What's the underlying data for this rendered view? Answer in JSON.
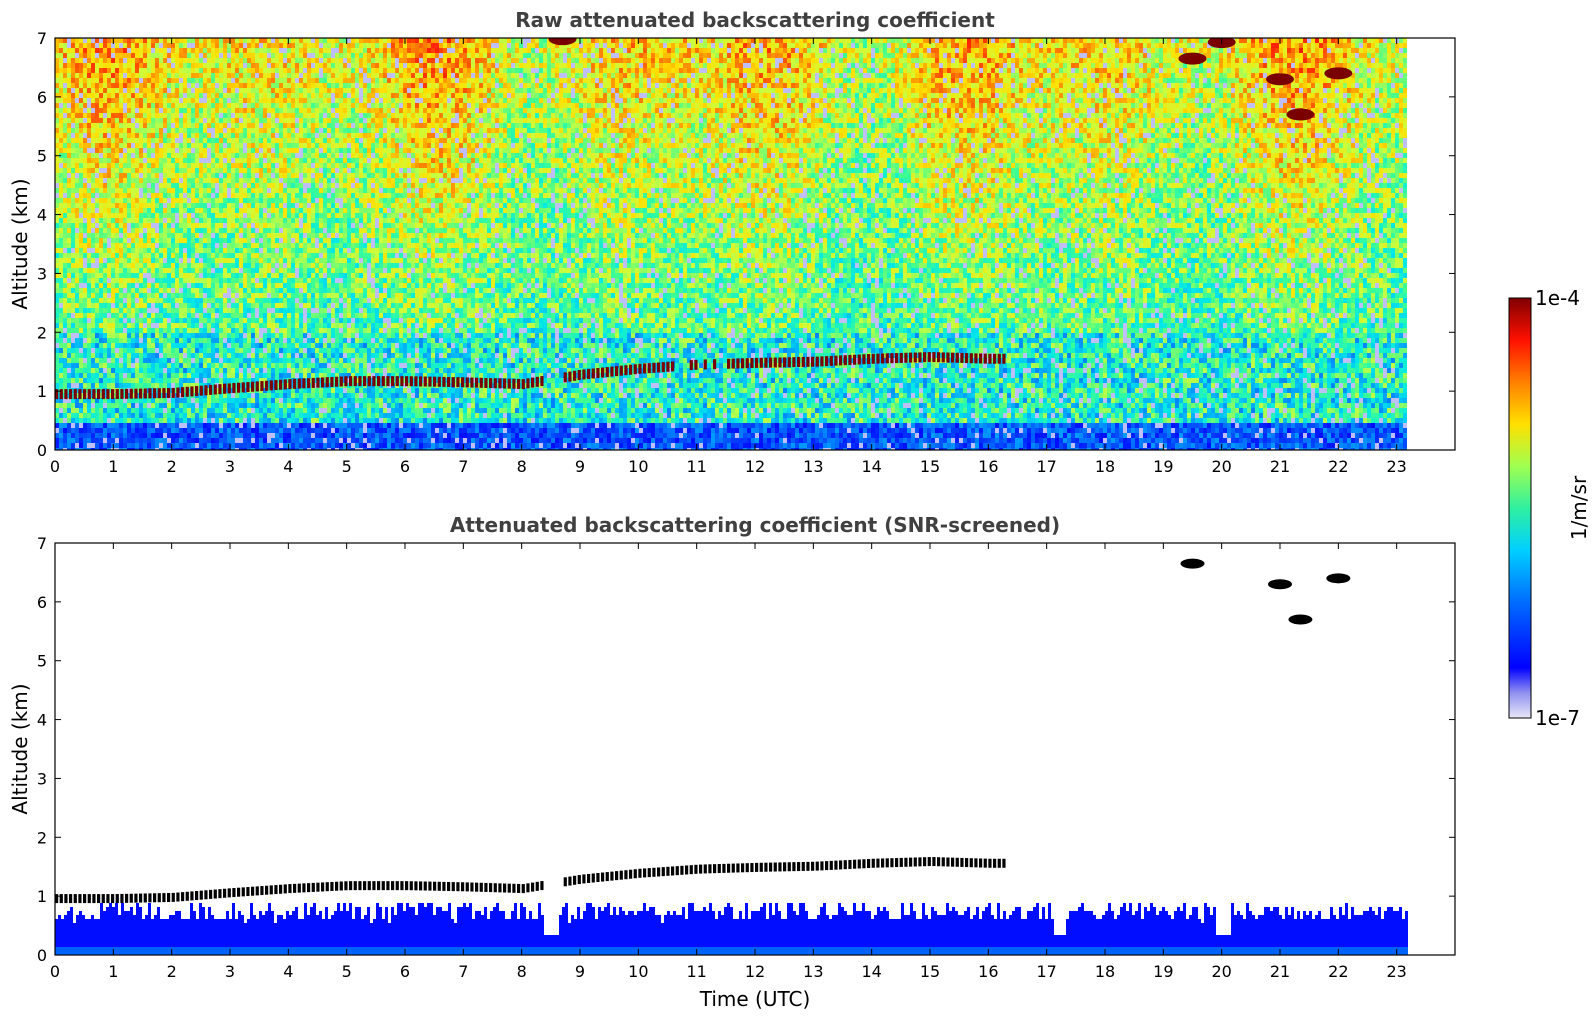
{
  "chart_data": [
    {
      "type": "heatmap",
      "title": "Raw attenuated backscattering coefficient",
      "xlabel": "",
      "ylabel": "Altitude (km)",
      "xlim": [
        0,
        24
      ],
      "ylim": [
        0,
        7
      ],
      "xticks": [
        "0",
        "1",
        "2",
        "3",
        "4",
        "5",
        "6",
        "7",
        "8",
        "9",
        "10",
        "11",
        "12",
        "13",
        "14",
        "15",
        "16",
        "17",
        "18",
        "19",
        "20",
        "21",
        "22",
        "23"
      ],
      "yticks": [
        "0",
        "1",
        "2",
        "3",
        "4",
        "5",
        "6",
        "7"
      ],
      "data_end_hour": 23.15,
      "boundary_layer_top_km": [
        {
          "x": 0,
          "y": 0.95
        },
        {
          "x": 1,
          "y": 0.95
        },
        {
          "x": 2,
          "y": 0.97
        },
        {
          "x": 3,
          "y": 1.05
        },
        {
          "x": 4,
          "y": 1.12
        },
        {
          "x": 5,
          "y": 1.17
        },
        {
          "x": 6,
          "y": 1.17
        },
        {
          "x": 7,
          "y": 1.15
        },
        {
          "x": 8,
          "y": 1.12
        },
        {
          "x": 9,
          "y": 1.28
        },
        {
          "x": 10,
          "y": 1.38
        },
        {
          "x": 11,
          "y": 1.45
        },
        {
          "x": 12,
          "y": 1.48
        },
        {
          "x": 13,
          "y": 1.5
        },
        {
          "x": 14,
          "y": 1.55
        },
        {
          "x": 15,
          "y": 1.58
        },
        {
          "x": 16,
          "y": 1.55
        }
      ],
      "upper_cloud_patches_km": [
        {
          "x": 19.5,
          "y": 6.65
        },
        {
          "x": 21.0,
          "y": 6.3
        },
        {
          "x": 21.35,
          "y": 5.7
        },
        {
          "x": 22.0,
          "y": 6.4
        },
        {
          "x": 8.7,
          "y": 6.98
        },
        {
          "x": 20.0,
          "y": 6.93
        }
      ],
      "colorbar": {
        "min": "1e-7",
        "max": "1e-4",
        "label": "1/m/sr"
      }
    },
    {
      "type": "heatmap",
      "title": "Attenuated backscattering coefficient (SNR-screened)",
      "xlabel": "Time (UTC)",
      "ylabel": "Altitude (km)",
      "xlim": [
        0,
        24
      ],
      "ylim": [
        0,
        7
      ],
      "xticks": [
        "0",
        "1",
        "2",
        "3",
        "4",
        "5",
        "6",
        "7",
        "8",
        "9",
        "10",
        "11",
        "12",
        "13",
        "14",
        "15",
        "16",
        "17",
        "18",
        "19",
        "20",
        "21",
        "22",
        "23"
      ],
      "yticks": [
        "0",
        "1",
        "2",
        "3",
        "4",
        "5",
        "6",
        "7"
      ],
      "data_end_hour": 23.15,
      "gap_columns_hours": [
        8.5,
        17.2,
        20.0
      ],
      "colorbar": {
        "min": "1e-7",
        "max": "1e-4",
        "label": "1/m/sr"
      }
    }
  ],
  "colors": {
    "colormap": [
      "#e8e8f8",
      "#0000ff",
      "#00a0ff",
      "#00e8e8",
      "#40ff90",
      "#c8ff40",
      "#ffe000",
      "#ff8000",
      "#ff2000",
      "#800000"
    ],
    "cloud_core": "#7a0000",
    "screened_cloud_edge": "#000000"
  }
}
